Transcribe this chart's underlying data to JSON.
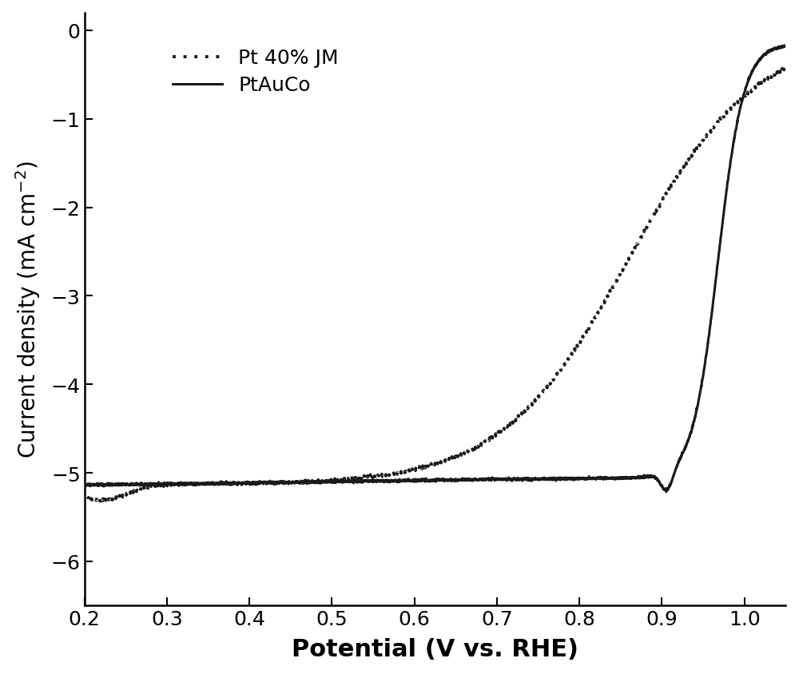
{
  "title": "",
  "xlabel": "Potential (V vs. RHE)",
  "ylabel": "Current density (mA cm$^{-2}$)",
  "xlim": [
    0.2,
    1.05
  ],
  "ylim": [
    -6.5,
    0.2
  ],
  "xticks": [
    0.2,
    0.3,
    0.4,
    0.5,
    0.6,
    0.7,
    0.8,
    0.9,
    1.0
  ],
  "yticks": [
    0,
    -1,
    -2,
    -3,
    -4,
    -5,
    -6
  ],
  "legend_labels": [
    "Pt 40% JM",
    "PtAuCo"
  ],
  "line_color": "#1a1a1a",
  "background_color": "#ffffff",
  "xlabel_fontsize": 22,
  "ylabel_fontsize": 20,
  "tick_fontsize": 18,
  "legend_fontsize": 18
}
